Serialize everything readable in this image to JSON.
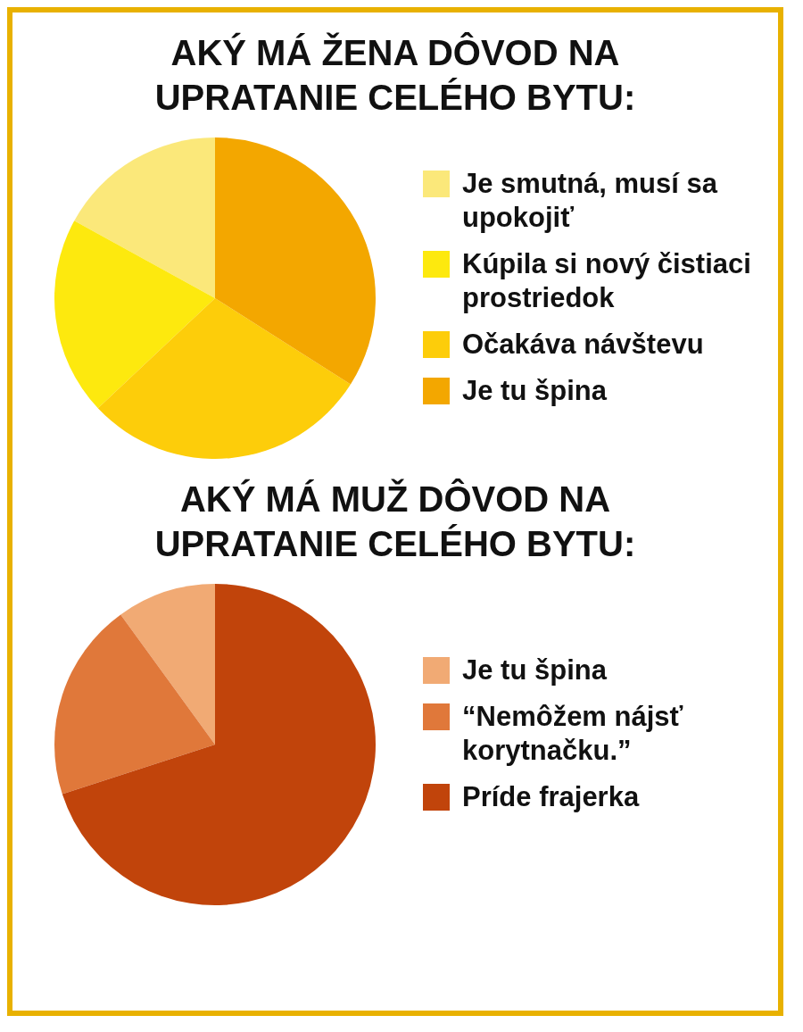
{
  "chart_data": [
    {
      "type": "pie",
      "title": "AKÝ MÁ ŽENA DÔVOD NA UPRATANIE CELÉHO BYTU:",
      "categories": [
        "Je smutná, musí sa upokojiť",
        "Kúpila si nový čistiaci prostriedok",
        "Očakáva návštevu",
        "Je tu špina"
      ],
      "values": [
        17,
        20,
        29,
        34
      ],
      "colors": [
        "#fbe87a",
        "#fde90e",
        "#fdcd0a",
        "#f3a700"
      ],
      "legend": "right"
    },
    {
      "type": "pie",
      "title": "AKÝ MÁ MUŽ DÔVOD NA UPRATANIE CELÉHO BYTU:",
      "categories": [
        "Je tu špina",
        "“Nemôžem nájsť korytnačku.”",
        "Príde frajerka"
      ],
      "values": [
        10,
        20,
        70
      ],
      "colors": [
        "#f1aa74",
        "#e0783a",
        "#c1440b"
      ],
      "legend": "right"
    }
  ]
}
